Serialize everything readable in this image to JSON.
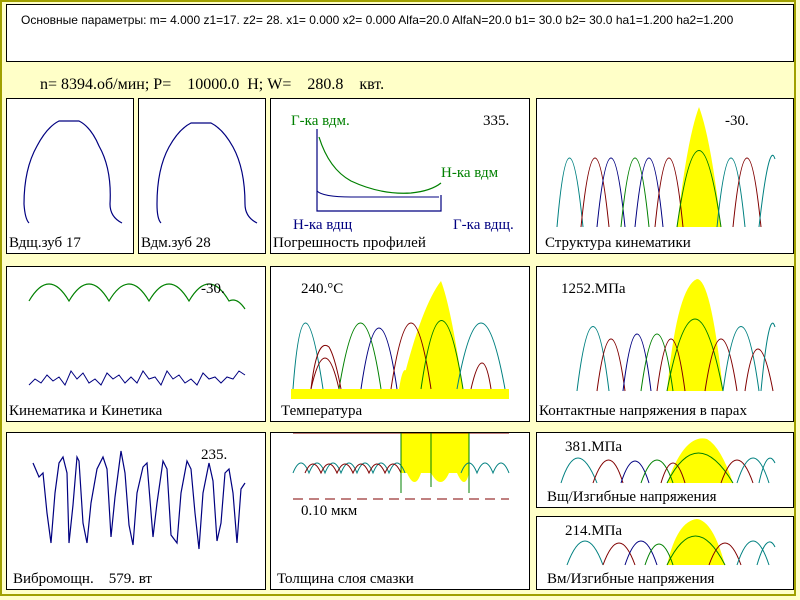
{
  "header": {
    "params_text": "Основные параметры: m= 4.000 z1=17. z2=  28. x1= 0.000 x2= 0.000 Alfa=20.0 AlfaN=20.0 b1= 30.0 b2= 30.0 ha1=1.200 ha2=1.200",
    "info_text": "n= 8394.об/мин; P=    10000.0  Н; W=    280.8    квт."
  },
  "panels": {
    "tooth1": {
      "caption": "Вдщ.зуб 17"
    },
    "tooth2": {
      "caption": "Вдм.зуб 28"
    },
    "profile_error": {
      "caption": "Погрешность профилей",
      "value": "335.",
      "label_top_left": "Г-ка вдм.",
      "label_mid_right": "Н-ка вдм",
      "label_bottom_left": "Н-ка вдщ",
      "label_bottom_right": "Г-ка вдщ."
    },
    "kinematics_structure": {
      "caption": "Структура кинематики",
      "value": "-30."
    },
    "kinematics_kinetics": {
      "caption": "Кинематика и Кинетика",
      "value": "-30."
    },
    "temperature": {
      "caption": "Температура",
      "value": "240.°C"
    },
    "contact_stress": {
      "caption": "Контактные напряжения в парах",
      "value": "1252.МПа"
    },
    "vibration": {
      "caption": "Вибромощн.    579. вт",
      "value": "235."
    },
    "lubrication": {
      "caption": "Толщина слоя смазки",
      "value": "0.10 мкм"
    },
    "bending1": {
      "caption": "Вщ/Изгибные напряжения",
      "value": "381.МПа"
    },
    "bending2": {
      "caption": "Вм/Изгибные напряжения",
      "value": "214.МПа"
    }
  },
  "colors": {
    "background": "#ffffc8",
    "frame": "#a0a000",
    "tooth_line": "#000080",
    "green_curve": "#008000",
    "blue_curve": "#000080",
    "highlight": "#ffff00",
    "teal": "#008080",
    "maroon": "#800000"
  }
}
